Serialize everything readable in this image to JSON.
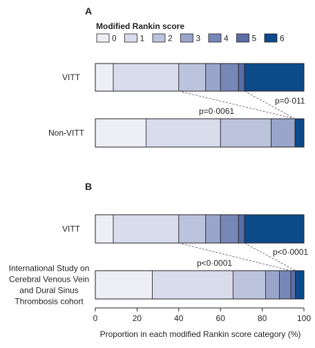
{
  "colors": {
    "segments": [
      "#eeeef5",
      "#d9dceb",
      "#bcc3dc",
      "#9aa5cc",
      "#7787b8",
      "#5b6da8",
      "#0c4a8a"
    ],
    "bar_stroke": "#231f20",
    "dash": "#6a7286"
  },
  "chart_data": [
    {
      "type": "bar",
      "orientation": "horizontal",
      "stacked": true,
      "panel": "A",
      "legend_title": "Modified Rankin score",
      "legend_labels": [
        "0",
        "1",
        "2",
        "3",
        "4",
        "5",
        "6"
      ],
      "categories": [
        "VITT",
        "Non-VITT"
      ],
      "series": [
        {
          "name": "0",
          "values": [
            8.6,
            24.3
          ]
        },
        {
          "name": "1",
          "values": [
            31.4,
            35.7
          ]
        },
        {
          "name": "2",
          "values": [
            12.9,
            24.3
          ]
        },
        {
          "name": "3",
          "values": [
            7.1,
            11.4
          ]
        },
        {
          "name": "4",
          "values": [
            8.6,
            0
          ]
        },
        {
          "name": "5",
          "values": [
            2.9,
            0
          ]
        },
        {
          "name": "6",
          "values": [
            28.5,
            4.3
          ]
        }
      ],
      "annotations": [
        {
          "text": "p=0·011",
          "from_boundary": 5,
          "to_boundary": 6
        },
        {
          "text": "p=0·0061",
          "from_boundary": 2,
          "to_boundary": 5
        }
      ],
      "xlim": [
        0,
        100
      ]
    },
    {
      "type": "bar",
      "orientation": "horizontal",
      "stacked": true,
      "panel": "B",
      "categories": [
        "VITT",
        "International Study on Cerebral Venous Vein and Dural Sinus Thrombosis cohort"
      ],
      "category_lines": [
        [
          "VITT"
        ],
        [
          "International Study on",
          "Cerebral Venous Vein",
          "and Dural Sinus",
          "Thrombosis cohort"
        ]
      ],
      "series": [
        {
          "name": "0",
          "values": [
            8.6,
            27.3
          ]
        },
        {
          "name": "1",
          "values": [
            31.4,
            38.7
          ]
        },
        {
          "name": "2",
          "values": [
            12.9,
            15.6
          ]
        },
        {
          "name": "3",
          "values": [
            7.1,
            6.6
          ]
        },
        {
          "name": "4",
          "values": [
            8.6,
            5.5
          ]
        },
        {
          "name": "5",
          "values": [
            2.9,
            2.2
          ]
        },
        {
          "name": "6",
          "values": [
            28.5,
            4.1
          ]
        }
      ],
      "annotations": [
        {
          "text": "p<0·0001",
          "from_boundary": 5,
          "to_boundary": 6
        },
        {
          "text": "p<0·0001",
          "from_boundary": 2,
          "to_boundary": 5
        }
      ],
      "xlim": [
        0,
        100
      ],
      "xticks": [
        0,
        20,
        40,
        60,
        80,
        100
      ],
      "xlabel": "Proportion in each modified Rankin score category (%)"
    }
  ]
}
